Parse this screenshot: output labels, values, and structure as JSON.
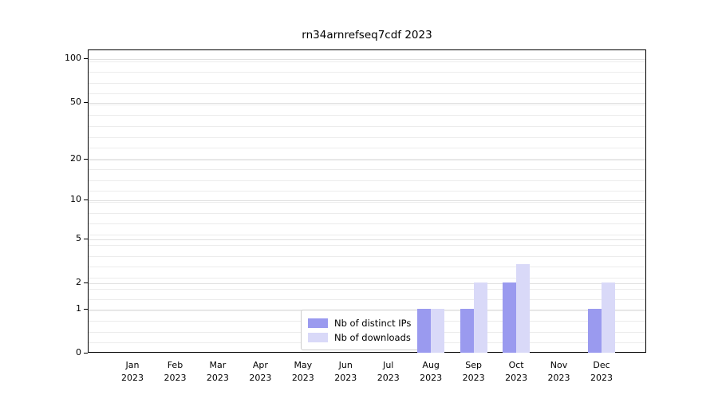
{
  "title": "rn34arnrefseq7cdf 2023",
  "legend": {
    "items": [
      {
        "label": "Nb of distinct IPs",
        "color": "#9a9aef"
      },
      {
        "label": "Nb of downloads",
        "color": "#d9d9f8"
      }
    ]
  },
  "colors": {
    "distinct_ips": "#9a9aef",
    "downloads": "#d9d9f8",
    "grid_minor": "#ececec",
    "grid_major": "#e0e0e0",
    "axis": "#000000",
    "legend_border": "#cccccc"
  },
  "chart_data": {
    "type": "bar",
    "title": "rn34arnrefseq7cdf 2023",
    "categories": [
      "Jan 2023",
      "Feb 2023",
      "Mar 2023",
      "Apr 2023",
      "May 2023",
      "Jun 2023",
      "Jul 2023",
      "Aug 2023",
      "Sep 2023",
      "Oct 2023",
      "Nov 2023",
      "Dec 2023"
    ],
    "x_tick_months": [
      "Jan",
      "Feb",
      "Mar",
      "Apr",
      "May",
      "Jun",
      "Jul",
      "Aug",
      "Sep",
      "Oct",
      "Nov",
      "Dec"
    ],
    "x_tick_year": "2023",
    "series": [
      {
        "name": "Nb of distinct IPs",
        "color": "#9a9aef",
        "values": [
          0,
          0,
          0,
          0,
          0,
          0,
          0,
          1,
          1,
          2,
          0,
          1
        ]
      },
      {
        "name": "Nb of downloads",
        "color": "#d9d9f8",
        "values": [
          0,
          0,
          0,
          0,
          0,
          0,
          0,
          1,
          2,
          3,
          0,
          2
        ]
      }
    ],
    "yscale": "log1p",
    "ylim": [
      0,
      100
    ],
    "yticks": [
      0,
      1,
      2,
      5,
      10,
      20,
      50,
      100
    ],
    "grid": "on",
    "legend_position": "lower center"
  }
}
